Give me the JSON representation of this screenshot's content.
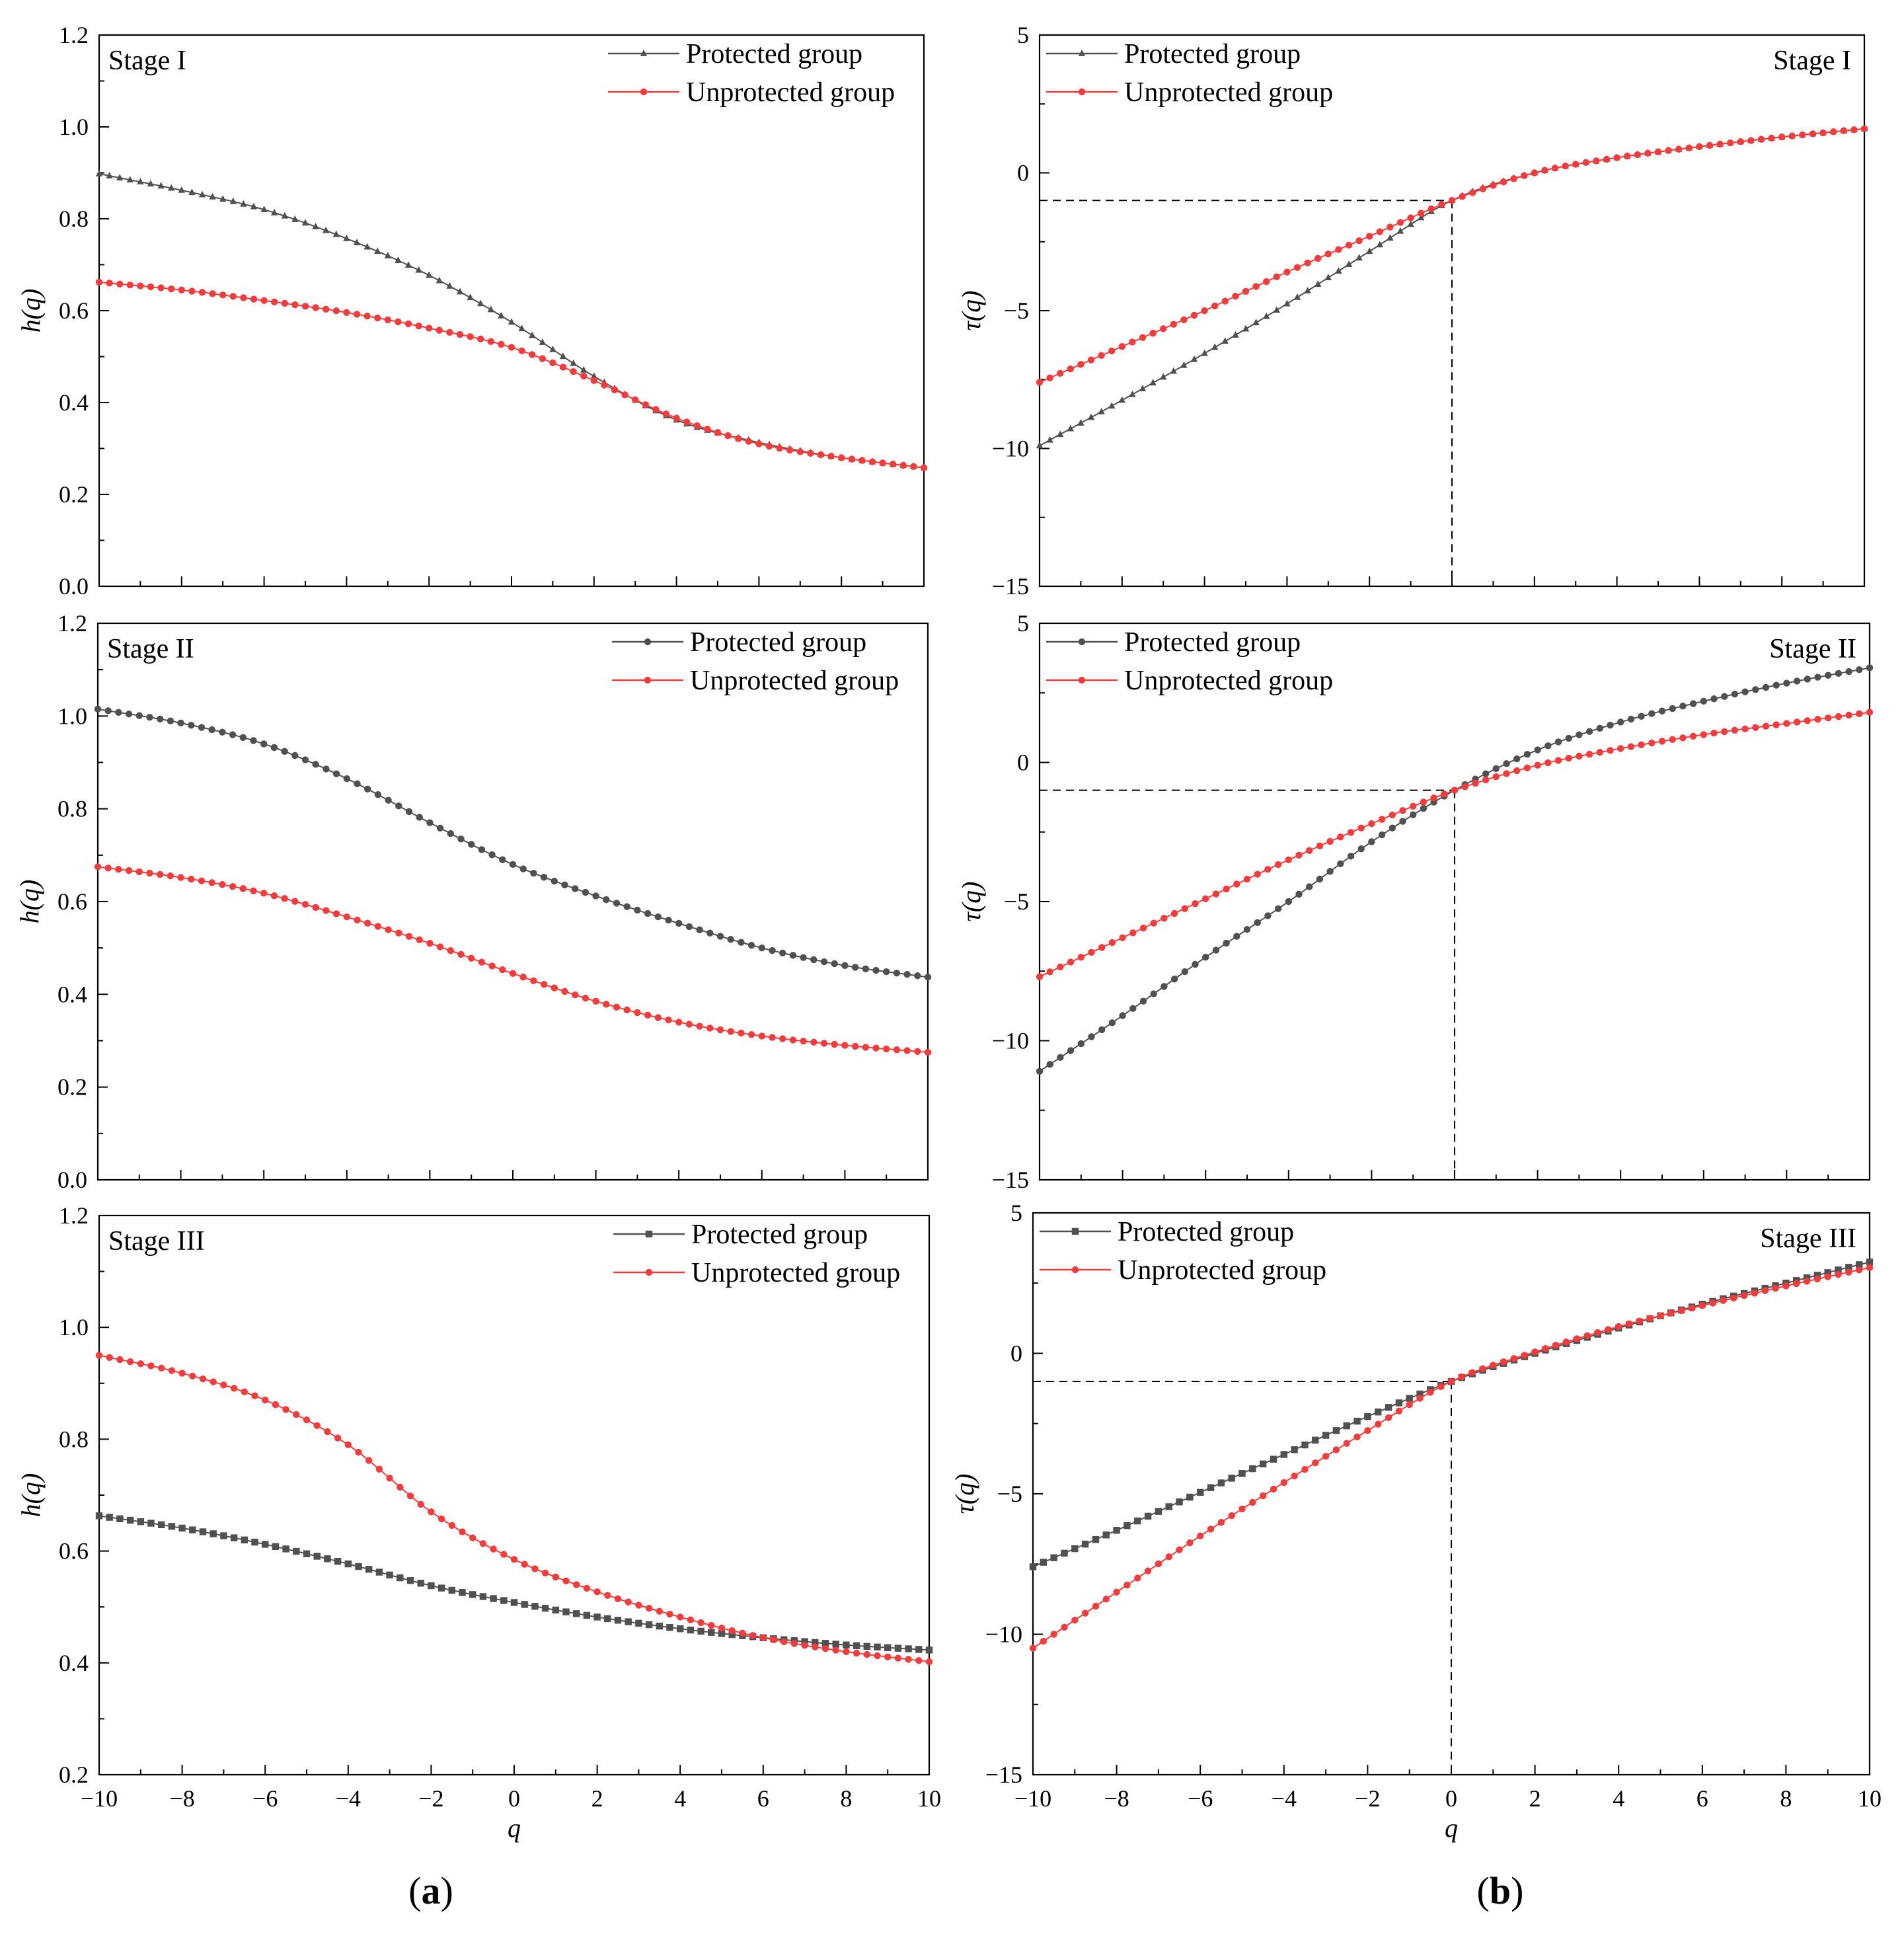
{
  "figure": {
    "panel_labels": [
      {
        "open": "(",
        "letter": "a",
        "close": ")"
      },
      {
        "open": "(",
        "letter": "b",
        "close": ")"
      }
    ]
  },
  "chart_data": [
    {
      "id": "a1",
      "type": "scatter",
      "stage": "Stage I",
      "xlabel": "",
      "ylabel": "h(q)",
      "show_x_ticks": false,
      "xlim": [
        -10,
        10
      ],
      "ylim": [
        0.0,
        1.2
      ],
      "yticks": [
        "0.0",
        "0.2",
        "0.4",
        "0.6",
        "0.8",
        "1.0",
        "1.2"
      ],
      "xticks": [
        "−10",
        "−8",
        "−6",
        "−4",
        "−2",
        "0",
        "2",
        "4",
        "6",
        "8",
        "10"
      ],
      "legend": "top-right",
      "stage_position": "top-left",
      "guides": null,
      "series": [
        {
          "name": "Protected group",
          "marker": "triangle",
          "color": "#505050",
          "anchors": [
            [
              -10,
              0.898
            ],
            [
              -8,
              0.862
            ],
            [
              -6,
              0.82
            ],
            [
              -4,
              0.757
            ],
            [
              -2,
              0.677
            ],
            [
              0,
              0.575
            ],
            [
              2,
              0.457
            ],
            [
              4,
              0.362
            ],
            [
              6,
              0.313
            ],
            [
              8,
              0.28
            ],
            [
              10,
              0.258
            ]
          ]
        },
        {
          "name": "Unprotected group",
          "marker": "circle",
          "color": "#f03c3c",
          "anchors": [
            [
              -10,
              0.662
            ],
            [
              -8,
              0.645
            ],
            [
              -6,
              0.622
            ],
            [
              -4,
              0.596
            ],
            [
              -2,
              0.562
            ],
            [
              0,
              0.52
            ],
            [
              2,
              0.448
            ],
            [
              4,
              0.366
            ],
            [
              6,
              0.31
            ],
            [
              8,
              0.28
            ],
            [
              10,
              0.258
            ]
          ]
        }
      ]
    },
    {
      "id": "b1",
      "type": "scatter",
      "stage": "Stage I",
      "xlabel": "",
      "ylabel": "τ(q)",
      "show_x_ticks": false,
      "xlim": [
        -10,
        10
      ],
      "ylim": [
        -15,
        5
      ],
      "yticks": [
        "−15",
        "−10",
        "−5",
        "0",
        "5"
      ],
      "xticks": [
        "−10",
        "−8",
        "−6",
        "−4",
        "−2",
        "0",
        "2",
        "4",
        "6",
        "8",
        "10"
      ],
      "legend": "top-left",
      "stage_position": "top-right",
      "guides": {
        "x": 0,
        "y": -1
      },
      "series": [
        {
          "name": "Protected group",
          "marker": "triangle",
          "color": "#505050",
          "anchors": [
            [
              -10,
              -9.9
            ],
            [
              -8,
              -8.25
            ],
            [
              -6,
              -6.55
            ],
            [
              -4,
              -4.75
            ],
            [
              -2,
              -2.85
            ],
            [
              0,
              -1.0
            ],
            [
              2,
              0.0
            ],
            [
              4,
              0.55
            ],
            [
              6,
              0.95
            ],
            [
              8,
              1.3
            ],
            [
              10,
              1.6
            ]
          ]
        },
        {
          "name": "Unprotected group",
          "marker": "circle",
          "color": "#f03c3c",
          "anchors": [
            [
              -10,
              -7.6
            ],
            [
              -8,
              -6.3
            ],
            [
              -6,
              -5.0
            ],
            [
              -4,
              -3.6
            ],
            [
              -2,
              -2.3
            ],
            [
              0,
              -1.0
            ],
            [
              2,
              0.0
            ],
            [
              4,
              0.55
            ],
            [
              6,
              0.95
            ],
            [
              8,
              1.3
            ],
            [
              10,
              1.6
            ]
          ]
        }
      ]
    },
    {
      "id": "a2",
      "type": "scatter",
      "stage": "Stage II",
      "xlabel": "",
      "ylabel": "h(q)",
      "show_x_ticks": false,
      "xlim": [
        -10,
        10
      ],
      "ylim": [
        0.0,
        1.2
      ],
      "yticks": [
        "0.0",
        "0.2",
        "0.4",
        "0.6",
        "0.8",
        "1.0",
        "1.2"
      ],
      "xticks": [
        "−10",
        "−8",
        "−6",
        "−4",
        "−2",
        "0",
        "2",
        "4",
        "6",
        "8",
        "10"
      ],
      "legend": "top-right",
      "stage_position": "top-left",
      "guides": null,
      "series": [
        {
          "name": "Protected group",
          "marker": "circle",
          "color": "#505050",
          "anchors": [
            [
              -10,
              1.015
            ],
            [
              -8,
              0.985
            ],
            [
              -6,
              0.94
            ],
            [
              -4,
              0.865
            ],
            [
              -2,
              0.77
            ],
            [
              0,
              0.68
            ],
            [
              2,
              0.612
            ],
            [
              4,
              0.553
            ],
            [
              6,
              0.5
            ],
            [
              8,
              0.462
            ],
            [
              10,
              0.437
            ]
          ]
        },
        {
          "name": "Unprotected group",
          "marker": "circle",
          "color": "#f03c3c",
          "anchors": [
            [
              -10,
              0.675
            ],
            [
              -8,
              0.652
            ],
            [
              -6,
              0.618
            ],
            [
              -4,
              0.567
            ],
            [
              -2,
              0.51
            ],
            [
              0,
              0.445
            ],
            [
              2,
              0.385
            ],
            [
              4,
              0.34
            ],
            [
              6,
              0.31
            ],
            [
              8,
              0.29
            ],
            [
              10,
              0.275
            ]
          ]
        }
      ]
    },
    {
      "id": "b2",
      "type": "scatter",
      "stage": "Stage II",
      "xlabel": "",
      "ylabel": "τ(q)",
      "show_x_ticks": false,
      "xlim": [
        -10,
        10
      ],
      "ylim": [
        -15,
        5
      ],
      "yticks": [
        "−15",
        "−10",
        "−5",
        "0",
        "5"
      ],
      "xticks": [
        "−10",
        "−8",
        "−6",
        "−4",
        "−2",
        "0",
        "2",
        "4",
        "6",
        "8",
        "10"
      ],
      "legend": "top-left",
      "stage_position": "top-right",
      "guides": {
        "x": 0,
        "y": -1
      },
      "series": [
        {
          "name": "Protected group",
          "marker": "circle",
          "color": "#505050",
          "anchors": [
            [
              -10,
              -11.1
            ],
            [
              -8,
              -9.1
            ],
            [
              -6,
              -7.0
            ],
            [
              -4,
              -5.0
            ],
            [
              -2,
              -2.85
            ],
            [
              0,
              -1.0
            ],
            [
              2,
              0.45
            ],
            [
              4,
              1.45
            ],
            [
              6,
              2.2
            ],
            [
              8,
              2.85
            ],
            [
              10,
              3.4
            ]
          ]
        },
        {
          "name": "Unprotected group",
          "marker": "circle",
          "color": "#f03c3c",
          "anchors": [
            [
              -10,
              -7.7
            ],
            [
              -8,
              -6.3
            ],
            [
              -6,
              -4.9
            ],
            [
              -4,
              -3.5
            ],
            [
              -2,
              -2.2
            ],
            [
              0,
              -1.0
            ],
            [
              2,
              -0.1
            ],
            [
              4,
              0.5
            ],
            [
              6,
              1.0
            ],
            [
              8,
              1.4
            ],
            [
              10,
              1.8
            ]
          ]
        }
      ]
    },
    {
      "id": "a3",
      "type": "scatter",
      "stage": "Stage III",
      "xlabel": "q",
      "ylabel": "h(q)",
      "show_x_ticks": true,
      "xlim": [
        -10,
        10
      ],
      "ylim": [
        0.2,
        1.2
      ],
      "yticks": [
        "0.2",
        "0.4",
        "0.6",
        "0.8",
        "1.0",
        "1.2"
      ],
      "xticks": [
        "−10",
        "−8",
        "−6",
        "−4",
        "−2",
        "0",
        "2",
        "4",
        "6",
        "8",
        "10"
      ],
      "legend": "top-right",
      "stage_position": "top-left",
      "guides": null,
      "series": [
        {
          "name": "Protected group",
          "marker": "square",
          "color": "#505050",
          "anchors": [
            [
              -10,
              0.663
            ],
            [
              -8,
              0.641
            ],
            [
              -6,
              0.612
            ],
            [
              -4,
              0.577
            ],
            [
              -2,
              0.538
            ],
            [
              0,
              0.508
            ],
            [
              2,
              0.482
            ],
            [
              4,
              0.461
            ],
            [
              6,
              0.445
            ],
            [
              8,
              0.432
            ],
            [
              10,
              0.423
            ]
          ]
        },
        {
          "name": "Unprotected group",
          "marker": "circle",
          "color": "#f03c3c",
          "anchors": [
            [
              -10,
              0.95
            ],
            [
              -8,
              0.918
            ],
            [
              -6,
              0.87
            ],
            [
              -4,
              0.79
            ],
            [
              -2,
              0.67
            ],
            [
              0,
              0.585
            ],
            [
              2,
              0.527
            ],
            [
              4,
              0.482
            ],
            [
              6,
              0.445
            ],
            [
              8,
              0.42
            ],
            [
              10,
              0.402
            ]
          ]
        }
      ]
    },
    {
      "id": "b3",
      "type": "scatter",
      "stage": "Stage III",
      "xlabel": "q",
      "ylabel": "τ(q)",
      "show_x_ticks": true,
      "xlim": [
        -10,
        10
      ],
      "ylim": [
        -15,
        5
      ],
      "yticks": [
        "−15",
        "−10",
        "−5",
        "0",
        "5"
      ],
      "xticks": [
        "−10",
        "−8",
        "−6",
        "−4",
        "−2",
        "0",
        "2",
        "4",
        "6",
        "8",
        "10"
      ],
      "legend": "top-left",
      "stage_position": "top-right",
      "guides": {
        "x": 0,
        "y": -1
      },
      "series": [
        {
          "name": "Protected group",
          "marker": "square",
          "color": "#505050",
          "anchors": [
            [
              -10,
              -7.6
            ],
            [
              -8,
              -6.3
            ],
            [
              -6,
              -4.95
            ],
            [
              -4,
              -3.6
            ],
            [
              -2,
              -2.25
            ],
            [
              0,
              -1.0
            ],
            [
              2,
              0.0
            ],
            [
              4,
              0.9
            ],
            [
              6,
              1.75
            ],
            [
              8,
              2.5
            ],
            [
              10,
              3.25
            ]
          ]
        },
        {
          "name": "Unprotected group",
          "marker": "circle",
          "color": "#f03c3c",
          "anchors": [
            [
              -10,
              -10.5
            ],
            [
              -8,
              -8.5
            ],
            [
              -6,
              -6.5
            ],
            [
              -4,
              -4.6
            ],
            [
              -2,
              -2.75
            ],
            [
              0,
              -1.0
            ],
            [
              2,
              0.05
            ],
            [
              4,
              0.95
            ],
            [
              6,
              1.7
            ],
            [
              8,
              2.4
            ],
            [
              10,
              3.05
            ]
          ]
        }
      ]
    }
  ]
}
